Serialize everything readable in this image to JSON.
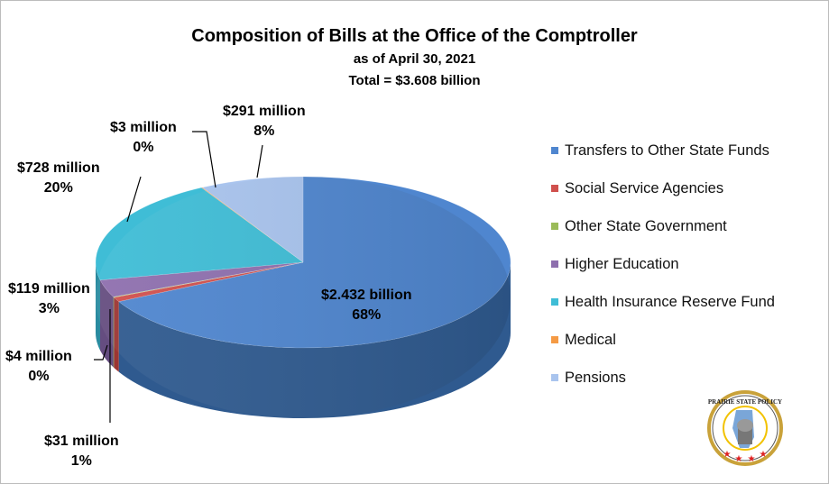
{
  "chart_data": {
    "type": "pie",
    "title": "Composition of Bills at the Office of the Comptroller",
    "subtitle": "as of April 30, 2021",
    "total_label": "Total = $3.608 billion",
    "legend_position": "right",
    "series": [
      {
        "name": "Transfers to Other State Funds",
        "value": 2432,
        "label": "$2.432 billion",
        "pct": "68%",
        "color": "#4f86cf",
        "side": "#2f5a8f"
      },
      {
        "name": "Social Service Agencies",
        "value": 31,
        "label": "$31 million",
        "pct": "1%",
        "color": "#d0504d",
        "side": "#9c3533"
      },
      {
        "name": "Other State Government",
        "value": 4,
        "label": "$4 million",
        "pct": "0%",
        "color": "#9bbb59",
        "side": "#6f8a3c"
      },
      {
        "name": "Higher Education",
        "value": 119,
        "label": "$119 million",
        "pct": "3%",
        "color": "#8e6fae",
        "side": "#654d80"
      },
      {
        "name": "Health Insurance Reserve Fund",
        "value": 728,
        "label": "$728 million",
        "pct": "20%",
        "color": "#3fbdd6",
        "side": "#2a8ba0"
      },
      {
        "name": "Medical",
        "value": 3,
        "label": "$3 million",
        "pct": "0%",
        "color": "#f59a44",
        "side": "#b8702e"
      },
      {
        "name": "Pensions",
        "value": 291,
        "label": "$291 million",
        "pct": "8%",
        "color": "#a9c4ee",
        "side": "#7b95bd"
      }
    ]
  },
  "logo": {
    "text": "PRAIRIE STATE POLICY"
  }
}
